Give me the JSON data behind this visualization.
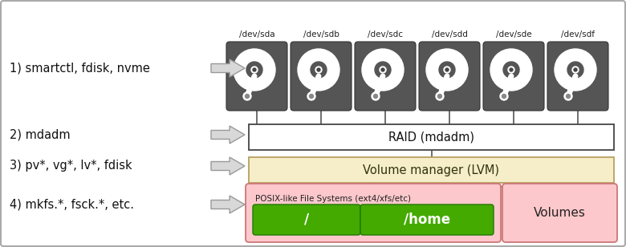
{
  "bg_color": "#ffffff",
  "border_color": "#aaaaaa",
  "disk_labels": [
    "/dev/sda",
    "/dev/sdb",
    "/dev/sdc",
    "/dev/sdd",
    "/dev/sde",
    "/dev/sdf"
  ],
  "disk_color": "#555555",
  "left_labels": [
    "1) smartctl, fdisk, nvme",
    "2) mdadm",
    "3) pv*, vg*, lv*, fdisk",
    "4) mkfs.*, fsck.*, etc."
  ],
  "raid_label": "RAID (mdadm)",
  "lvm_label": "Volume manager (LVM)",
  "fs_label": "POSIX-like File Systems (ext4/xfs/etc)",
  "vol_label": "Volumes",
  "slash_label": "/",
  "home_label": "/home",
  "raid_facecolor": "#ffffff",
  "raid_edgecolor": "#444444",
  "lvm_facecolor": "#f5eec8",
  "lvm_edgecolor": "#b8a060",
  "fs_facecolor": "#fcc8cc",
  "fs_edgecolor": "#cc7777",
  "vol_facecolor": "#fcc8cc",
  "vol_edgecolor": "#cc7777",
  "green_facecolor": "#44aa00",
  "green_edgecolor": "#227700",
  "arrow_facecolor": "#d8d8d8",
  "arrow_edgecolor": "#999999"
}
